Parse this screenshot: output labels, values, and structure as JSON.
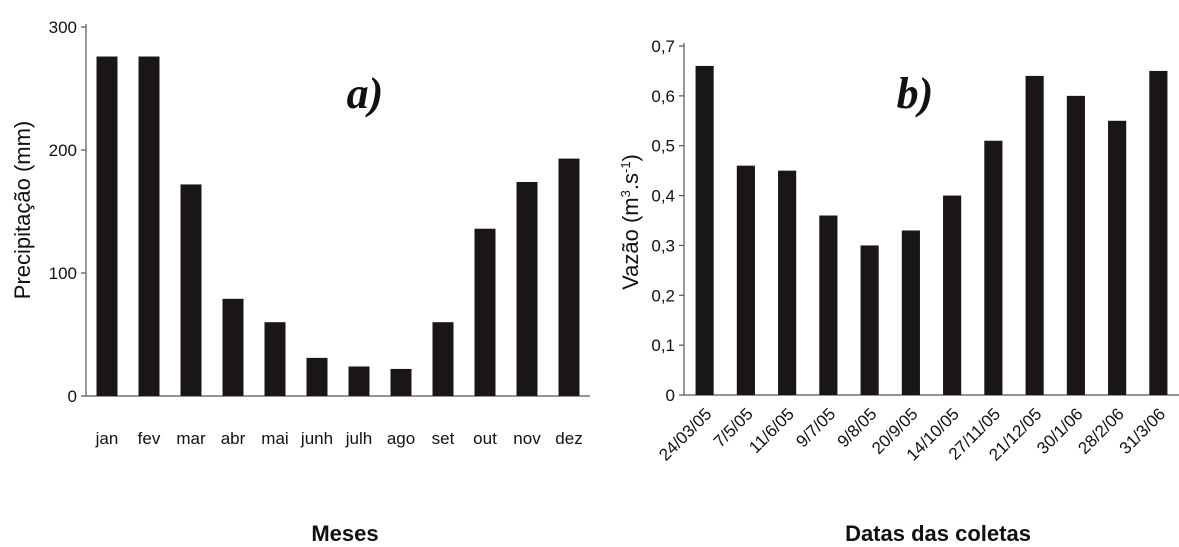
{
  "chart_data": [
    {
      "type": "bar",
      "panel_label": "a)",
      "categories": [
        "jan",
        "fev",
        "mar",
        "abr",
        "mai",
        "junh",
        "julh",
        "ago",
        "set",
        "out",
        "nov",
        "dez"
      ],
      "values": [
        276,
        276,
        172,
        79,
        60,
        31,
        24,
        22,
        60,
        136,
        174,
        193
      ],
      "xlabel": "Meses",
      "ylabel": "Precipitação (mm)",
      "ylim": [
        0,
        300
      ],
      "yticks": [
        "0",
        "100",
        "200",
        "300"
      ],
      "grid": false,
      "bar_color": "#1a1616"
    },
    {
      "type": "bar",
      "panel_label": "b)",
      "categories": [
        "24/03/05",
        "7/5/05",
        "11/6/05",
        "9/7/05",
        "9/8/05",
        "20/9/05",
        "14/10/05",
        "27/11/05",
        "21/12/05",
        "30/1/06",
        "28/2/06",
        "31/3/06"
      ],
      "values": [
        0.66,
        0.46,
        0.45,
        0.36,
        0.3,
        0.33,
        0.4,
        0.51,
        0.64,
        0.6,
        0.55,
        0.65
      ],
      "xlabel": "Datas das coletas",
      "ylabel_main": "Vazão (m",
      "ylabel_sup1": "3",
      "ylabel_mid": ".s",
      "ylabel_sup2": "-1",
      "ylabel_end": ")",
      "ylim": [
        0,
        0.7
      ],
      "yticks": [
        "0",
        "0,1",
        "0,2",
        "0,3",
        "0,4",
        "0,5",
        "0,6",
        "0,7"
      ],
      "grid": false,
      "bar_color": "#1a1616"
    }
  ]
}
